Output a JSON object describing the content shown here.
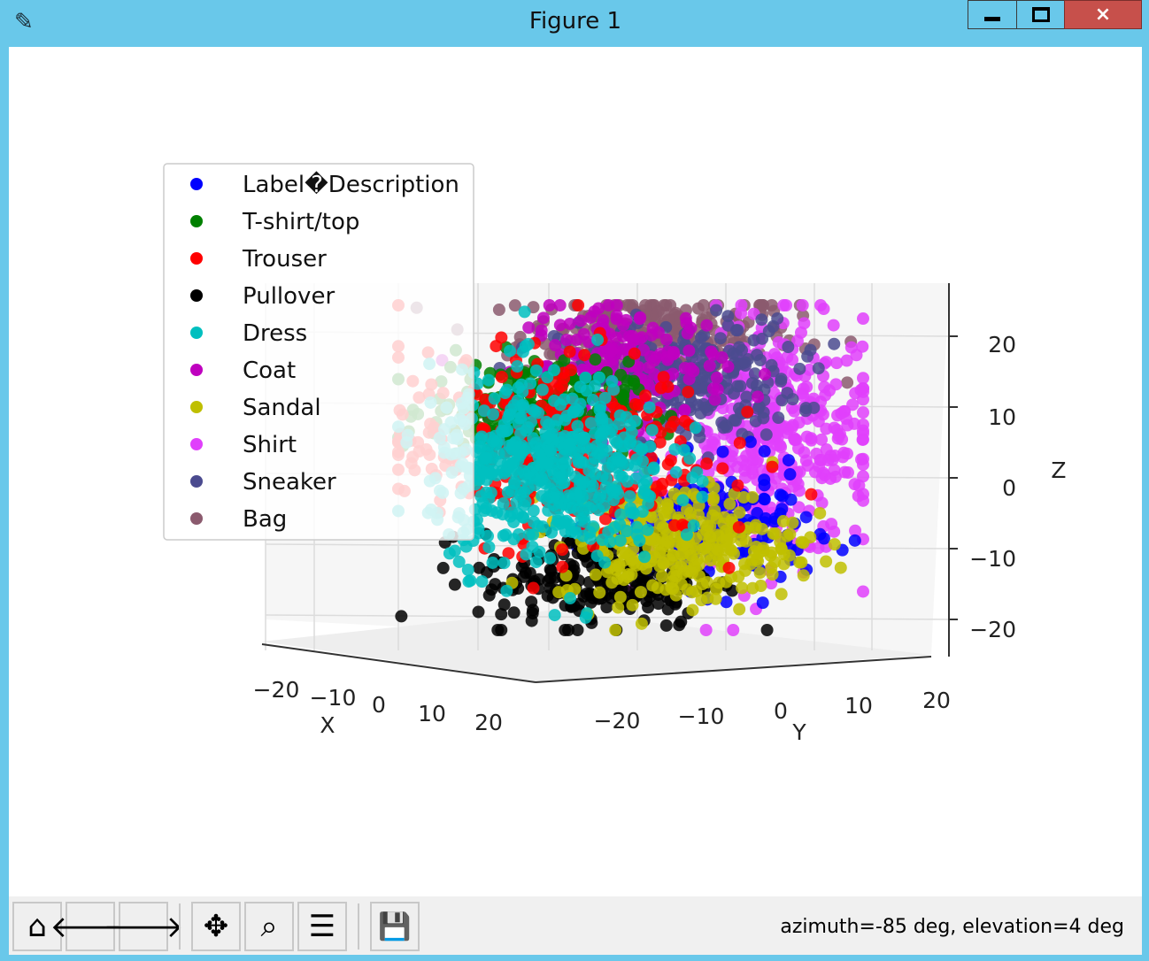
{
  "window": {
    "title": "Figure 1",
    "icon": "feather-icon",
    "controls": {
      "minimize": "minimize-icon",
      "maximize": "maximize-icon",
      "close": "×"
    }
  },
  "toolbar": {
    "buttons": [
      {
        "name": "home-button",
        "icon": "home-icon",
        "glyph": "⌂"
      },
      {
        "name": "back-button",
        "icon": "arrow-left-icon",
        "glyph": "🡐"
      },
      {
        "name": "forward-button",
        "icon": "arrow-right-icon",
        "glyph": "🡒"
      },
      {
        "name": "pan-button",
        "icon": "move-icon",
        "glyph": "✥"
      },
      {
        "name": "zoom-button",
        "icon": "magnifier-icon",
        "glyph": "⌕"
      },
      {
        "name": "configure-button",
        "icon": "sliders-icon",
        "glyph": "☰"
      },
      {
        "name": "save-button",
        "icon": "floppy-disk-icon",
        "glyph": "💾"
      }
    ],
    "status": "azimuth=-85 deg, elevation=4 deg"
  },
  "colors": {
    "titlebar": "#69c8ea",
    "close_button": "#c7504b",
    "pane": "#f2f2f2",
    "grid": "#dddddd"
  },
  "chart_data": {
    "type": "scatter",
    "projection": "3d",
    "view": {
      "azimuth": -85,
      "elevation": 4
    },
    "xlabel": "X",
    "ylabel": "Y",
    "zlabel": "Z",
    "x_ticks": [
      "−20",
      "−10",
      "0",
      "10",
      "20"
    ],
    "y_ticks": [
      "−20",
      "−10",
      "0",
      "10",
      "20"
    ],
    "z_ticks": [
      "20",
      "10",
      "0",
      "−10",
      "−20"
    ],
    "xlim": [
      -25,
      25
    ],
    "ylim": [
      -25,
      25
    ],
    "zlim": [
      -25,
      25
    ],
    "grid": true,
    "legend_position": "upper-left",
    "series": [
      {
        "name": "Label�Description",
        "color": "#0000ff",
        "center": [
          8,
          -5,
          -8
        ],
        "spread": [
          5,
          3,
          5
        ],
        "n": 180
      },
      {
        "name": "T-shirt/top",
        "color": "#008000",
        "center": [
          -10,
          -5,
          8
        ],
        "spread": [
          5,
          3,
          4
        ],
        "n": 220
      },
      {
        "name": "Trouser",
        "color": "#ff0000",
        "center": [
          -8,
          0,
          3
        ],
        "spread": [
          8,
          6,
          8
        ],
        "n": 320
      },
      {
        "name": "Pullover",
        "color": "#000000",
        "center": [
          -3,
          0,
          -15
        ],
        "spread": [
          6,
          5,
          4
        ],
        "n": 220
      },
      {
        "name": "Dress",
        "color": "#00bfbf",
        "center": [
          -8,
          0,
          0
        ],
        "spread": [
          6,
          6,
          8
        ],
        "n": 520
      },
      {
        "name": "Coat",
        "color": "#bf00bf",
        "center": [
          0,
          0,
          14
        ],
        "spread": [
          5,
          5,
          5
        ],
        "n": 180
      },
      {
        "name": "Sandal",
        "color": "#bfbf00",
        "center": [
          5,
          0,
          -10
        ],
        "spread": [
          6,
          4,
          5
        ],
        "n": 320
      },
      {
        "name": "Shirt",
        "color": "#e040fb",
        "center": [
          14,
          0,
          4
        ],
        "spread": [
          6,
          6,
          10
        ],
        "n": 450
      },
      {
        "name": "Sneaker",
        "color": "#4b4b8f",
        "center": [
          5,
          0,
          12
        ],
        "spread": [
          6,
          4,
          5
        ],
        "n": 280
      },
      {
        "name": "Bag",
        "color": "#8b5a6e",
        "center": [
          3,
          0,
          18
        ],
        "spread": [
          7,
          5,
          4
        ],
        "n": 260
      }
    ]
  }
}
